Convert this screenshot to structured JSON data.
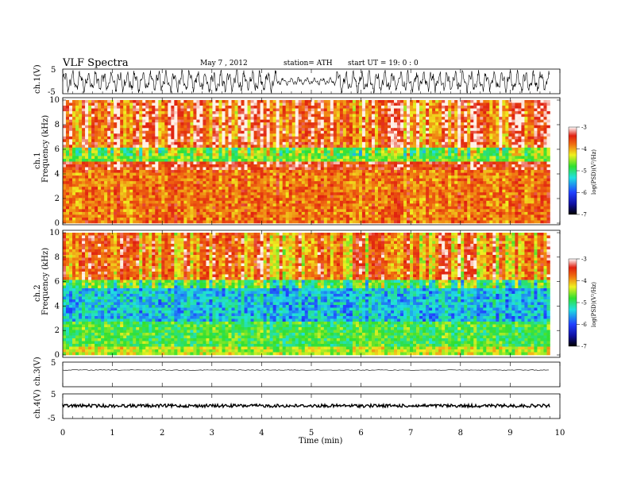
{
  "header": {
    "title": "VLF  Spectra",
    "date": "May 7  , 2012",
    "station": "station= ATH",
    "start": "start  UT  =    19: 0  : 0"
  },
  "chart_data": [
    {
      "type": "line",
      "ylabel": "ch.1(V)",
      "ylim": [
        -5,
        5
      ],
      "yticks": [
        "5",
        "-5"
      ]
    },
    {
      "type": "heatmap",
      "ylabel_top": "ch.1",
      "ylabel": "Frequency  (kHz)",
      "ylim": [
        0,
        10
      ],
      "yticks": [
        "0",
        "2",
        "4",
        "6",
        "8",
        "10"
      ],
      "colorbar": {
        "label": "log(PSD)(V²/Hz)",
        "ticks": [
          "-3",
          "-4",
          "-5",
          "-6",
          "-7"
        ],
        "range": [
          -7,
          -3
        ]
      }
    },
    {
      "type": "heatmap",
      "ylabel_top": "ch.2",
      "ylabel": "Frequency  (kHz)",
      "ylim": [
        0,
        10
      ],
      "yticks": [
        "0",
        "2",
        "4",
        "6",
        "8",
        "10"
      ],
      "colorbar": {
        "label": "log(PSD)(V²/Hz)",
        "ticks": [
          "-3",
          "-4",
          "-5",
          "-6",
          "-7"
        ],
        "range": [
          -7,
          -3
        ]
      }
    },
    {
      "type": "line",
      "ylabel": "ch.3(V)",
      "ylim": [
        -5,
        5
      ],
      "yticks": [
        "5"
      ]
    },
    {
      "type": "line",
      "ylabel": "ch.4(V)",
      "ylim": [
        -5,
        5
      ],
      "yticks": [
        "5",
        "-5"
      ],
      "xlabel": "Time  (min)",
      "xlim": [
        0,
        10
      ],
      "xticks": [
        "0",
        "1",
        "2",
        "3",
        "4",
        "5",
        "6",
        "7",
        "8",
        "9",
        "10"
      ]
    }
  ],
  "colors": {
    "heat_red": "#e8341c",
    "heat_orange": "#f5a623",
    "heat_yellow": "#e8e82a",
    "heat_green": "#44e23a",
    "heat_cyan": "#3ad8c8",
    "heat_blue": "#2040e0"
  }
}
